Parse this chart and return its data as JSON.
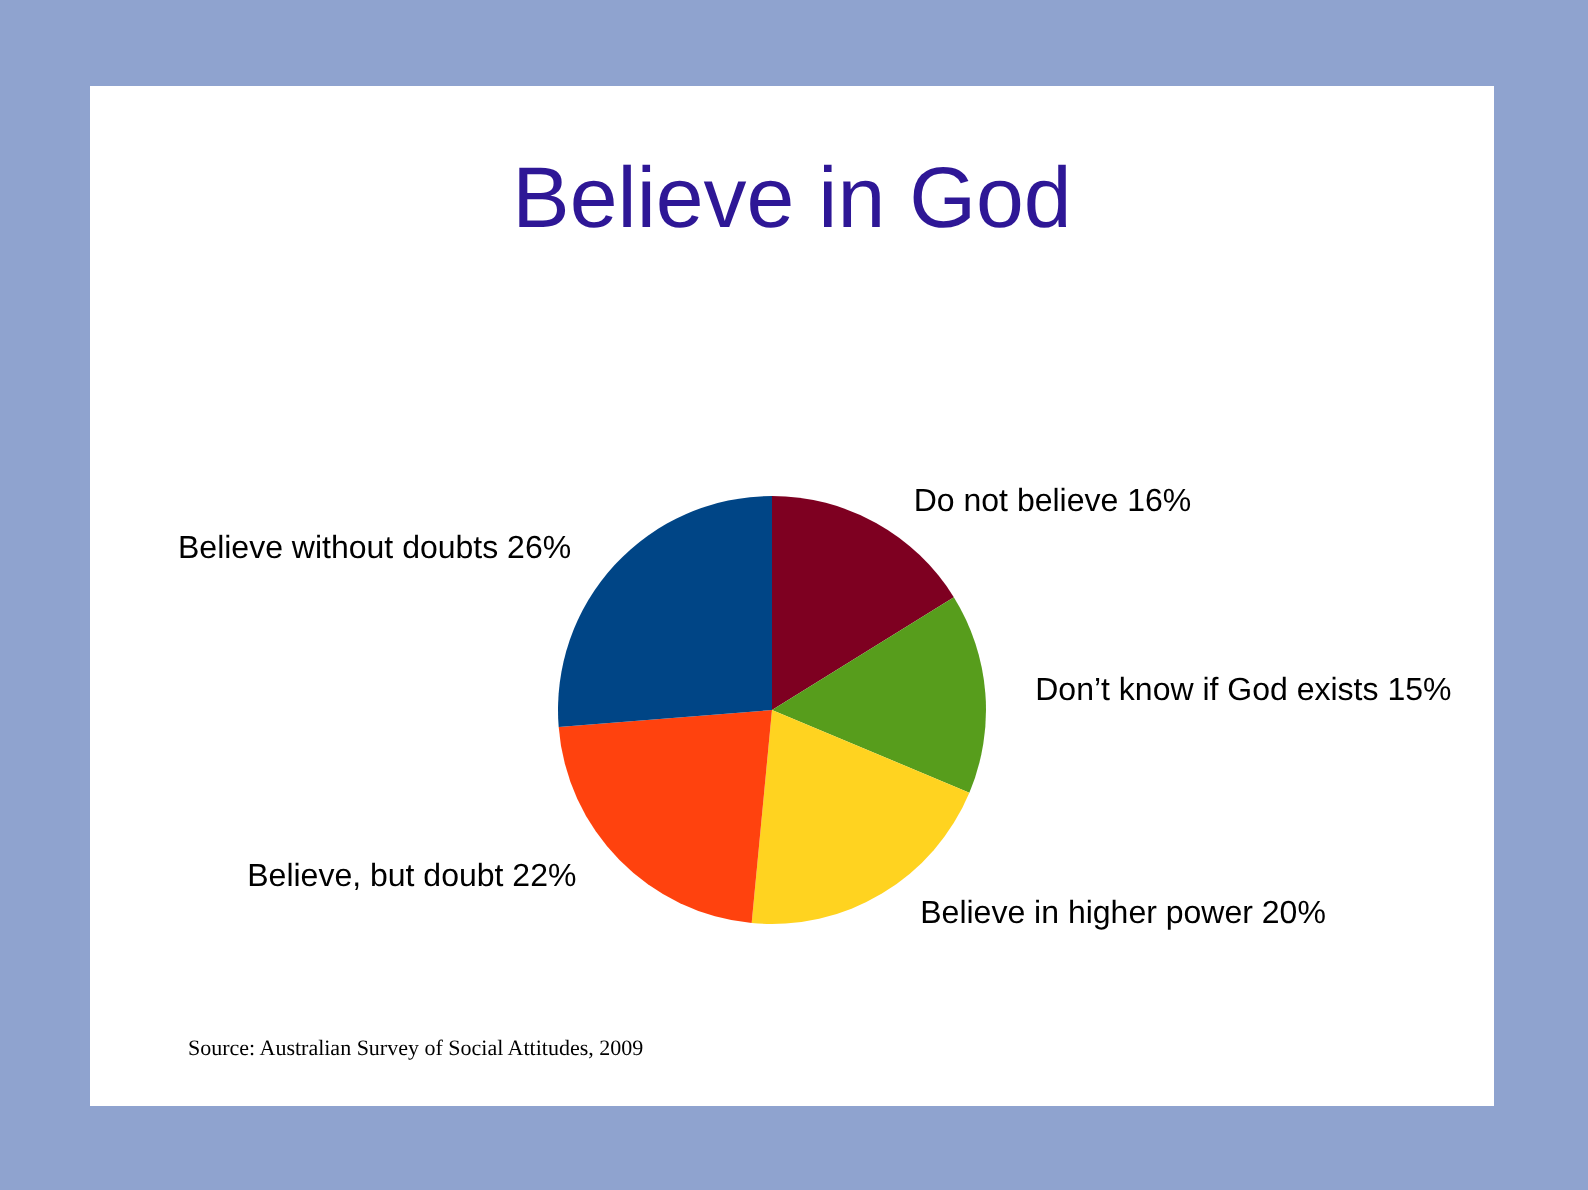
{
  "chart_data": {
    "type": "pie",
    "title": "Believe in God",
    "categories": [
      "Do not believe",
      "Don’t know if God exists",
      "Believe in higher power",
      "Believe, but doubt",
      "Believe without doubts"
    ],
    "values": [
      16,
      15,
      20,
      22,
      26
    ],
    "colors": [
      "#7e0021",
      "#579d1c",
      "#ffd320",
      "#ff420e",
      "#004586"
    ],
    "value_labels": [
      "16%",
      "15%",
      "20%",
      "22%",
      "26%"
    ],
    "annotations": [
      "Source: Australian Survey of Social Attitudes, 2009"
    ]
  }
}
